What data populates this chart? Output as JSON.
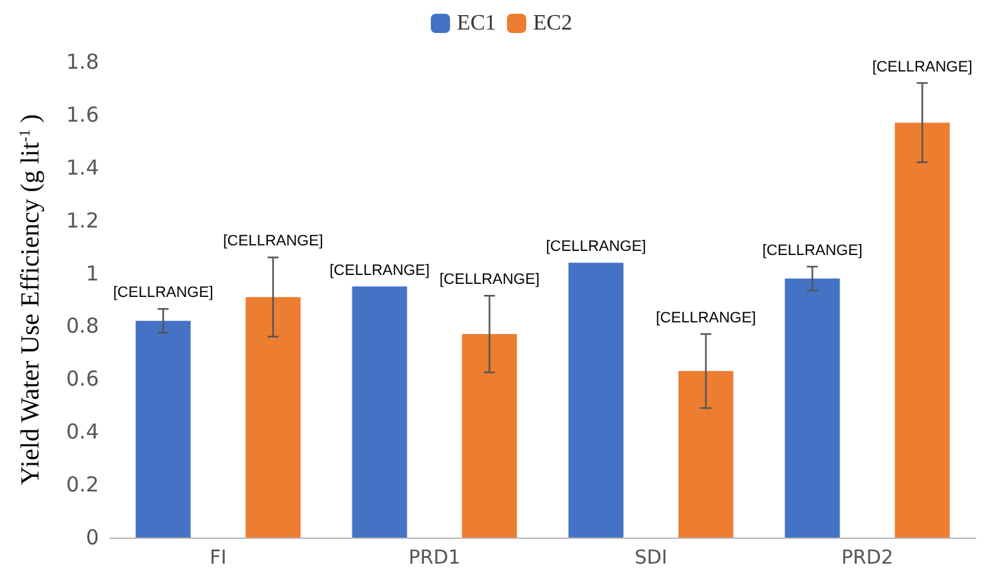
{
  "chart_data": {
    "type": "bar",
    "ylabel": "Yield Water Use Efficiency (g lit$^{-1}$ )",
    "categories": [
      "FI",
      "PRD1",
      "SDI",
      "PRD2"
    ],
    "series": [
      {
        "name": "EC1",
        "color": "#4472c4",
        "values": [
          0.82,
          0.95,
          1.04,
          0.98
        ],
        "errors": [
          0.045,
          null,
          null,
          0.045
        ],
        "value_labels": [
          "[CELLRANGE]",
          "[CELLRANGE]",
          "[CELLRANGE]",
          "[CELLRANGE]"
        ]
      },
      {
        "name": "EC2",
        "color": "#ed7d31",
        "values": [
          0.91,
          0.77,
          0.63,
          1.57
        ],
        "errors": [
          0.15,
          0.145,
          0.14,
          0.15
        ],
        "value_labels": [
          "[CELLRANGE]",
          "[CELLRANGE]",
          "[CELLRANGE]",
          "[CELLRANGE]"
        ]
      }
    ],
    "ylim": [
      0,
      1.8
    ],
    "yticks": [
      0,
      0.2,
      0.4,
      0.6,
      0.8,
      1,
      1.2,
      1.4,
      1.6,
      1.8
    ],
    "grid": false,
    "legend": "top"
  }
}
